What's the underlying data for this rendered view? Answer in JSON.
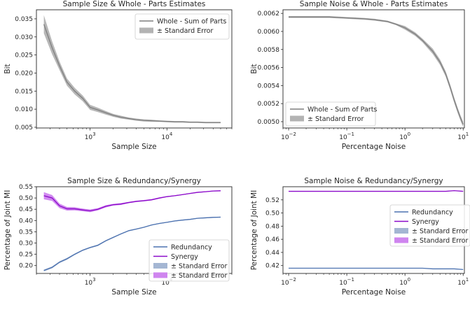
{
  "chart_data": [
    {
      "type": "line",
      "title": "Sample Size & Whole - Parts Estimates",
      "xlabel": "Sample Size",
      "ylabel": "Bit",
      "xscale": "log",
      "xlim": [
        200,
        70000
      ],
      "ylim": [
        0.0048,
        0.0375
      ],
      "xticks": [
        {
          "v": 1000,
          "base": "10",
          "exp": "3"
        },
        {
          "v": 10000,
          "base": "10",
          "exp": "4"
        }
      ],
      "yticks": [
        {
          "v": 0.005,
          "label": "0.005"
        },
        {
          "v": 0.01,
          "label": "0.010"
        },
        {
          "v": 0.015,
          "label": "0.015"
        },
        {
          "v": 0.02,
          "label": "0.020"
        },
        {
          "v": 0.025,
          "label": "0.025"
        },
        {
          "v": 0.03,
          "label": "0.030"
        },
        {
          "v": 0.035,
          "label": "0.035"
        }
      ],
      "legend_position": "top-right",
      "legend": [
        {
          "label": "Whole - Sum of Parts",
          "kind": "line",
          "color": "#7f7f7f"
        },
        {
          "label": "± Standard Error",
          "kind": "band",
          "color": "#b3b3b3"
        }
      ],
      "x": [
        250,
        320,
        400,
        500,
        630,
        800,
        1000,
        1260,
        1600,
        2000,
        2500,
        3200,
        4000,
        5000,
        6300,
        8000,
        10000,
        12600,
        16000,
        20000,
        25000,
        32000,
        40000,
        50000
      ],
      "series": [
        {
          "name": "Whole - Sum of Parts",
          "color": "#7f7f7f",
          "band_color": "#b3b3b3",
          "values": [
            0.0335,
            0.027,
            0.022,
            0.0175,
            0.015,
            0.013,
            0.0105,
            0.0098,
            0.009,
            0.0083,
            0.0078,
            0.0074,
            0.0071,
            0.0069,
            0.0068,
            0.0067,
            0.0066,
            0.0065,
            0.0065,
            0.0064,
            0.0064,
            0.0063,
            0.0063,
            0.0063
          ],
          "err": [
            0.0025,
            0.0018,
            0.0012,
            0.001,
            0.0009,
            0.0008,
            0.0007,
            0.0006,
            0.0005,
            0.0004,
            0.0004,
            0.0003,
            0.0003,
            0.0003,
            0.0003,
            0.0002,
            0.0002,
            0.0002,
            0.0002,
            0.0002,
            0.0002,
            0.0002,
            0.0002,
            0.0002
          ]
        }
      ]
    },
    {
      "type": "line",
      "title": "Sample Noise & Whole - Parts Estimates",
      "xlabel": "Percentage Noise",
      "ylabel": "Bit",
      "xscale": "log",
      "xlim": [
        0.008,
        10.5
      ],
      "ylim": [
        0.00493,
        0.00624
      ],
      "xticks": [
        {
          "v": 0.01,
          "base": "10",
          "exp": "−2"
        },
        {
          "v": 0.1,
          "base": "10",
          "exp": "−1"
        },
        {
          "v": 1,
          "base": "10",
          "exp": "0"
        },
        {
          "v": 10,
          "base": "10",
          "exp": "1"
        }
      ],
      "yticks": [
        {
          "v": 0.005,
          "label": "0.0050"
        },
        {
          "v": 0.0052,
          "label": "0.0052"
        },
        {
          "v": 0.0054,
          "label": "0.0054"
        },
        {
          "v": 0.0056,
          "label": "0.0056"
        },
        {
          "v": 0.0058,
          "label": "0.0058"
        },
        {
          "v": 0.006,
          "label": "0.0060"
        },
        {
          "v": 0.0062,
          "label": "0.0062"
        }
      ],
      "legend_position": "bottom-left",
      "legend": [
        {
          "label": "Whole - Sum of Parts",
          "kind": "line",
          "color": "#7f7f7f"
        },
        {
          "label": "± Standard Error",
          "kind": "band",
          "color": "#b3b3b3"
        }
      ],
      "x": [
        0.01,
        0.02,
        0.05,
        0.1,
        0.2,
        0.3,
        0.5,
        0.7,
        1,
        1.5,
        2,
        3,
        4,
        5,
        6,
        7,
        8,
        9,
        10
      ],
      "series": [
        {
          "name": "Whole - Sum of Parts",
          "color": "#7f7f7f",
          "band_color": "#b3b3b3",
          "values": [
            0.00616,
            0.00616,
            0.00616,
            0.00615,
            0.00614,
            0.00613,
            0.00611,
            0.00608,
            0.00604,
            0.00597,
            0.0059,
            0.00578,
            0.00566,
            0.00553,
            0.00538,
            0.00524,
            0.00513,
            0.00504,
            0.00497
          ],
          "err": [
            1e-05,
            1e-05,
            1e-05,
            1e-05,
            1e-05,
            1e-05,
            1e-05,
            1e-05,
            2e-05,
            2e-05,
            2e-05,
            3e-05,
            3e-05,
            3e-05,
            3e-05,
            3e-05,
            3e-05,
            3e-05,
            3e-05
          ]
        }
      ]
    },
    {
      "type": "line",
      "title": "Sample Size & Redundancy/Synergy",
      "xlabel": "Sample Size",
      "ylabel": "Percentage of Joint MI",
      "xscale": "log",
      "xlim": [
        200,
        70000
      ],
      "ylim": [
        0.165,
        0.55
      ],
      "xticks": [
        {
          "v": 1000,
          "base": "10",
          "exp": "3"
        },
        {
          "v": 10000,
          "base": "10",
          "exp": "4"
        }
      ],
      "yticks": [
        {
          "v": 0.2,
          "label": "0.20"
        },
        {
          "v": 0.25,
          "label": "0.25"
        },
        {
          "v": 0.3,
          "label": "0.30"
        },
        {
          "v": 0.35,
          "label": "0.35"
        },
        {
          "v": 0.4,
          "label": "0.40"
        },
        {
          "v": 0.45,
          "label": "0.45"
        },
        {
          "v": 0.5,
          "label": "0.50"
        },
        {
          "v": 0.55,
          "label": "0.55"
        }
      ],
      "legend_position": "bottom-right",
      "legend": [
        {
          "label": "Redundancy",
          "kind": "line",
          "color": "#4c72b0"
        },
        {
          "label": "Synergy",
          "kind": "line",
          "color": "#8b0ac9"
        },
        {
          "label": "± Standard Error",
          "kind": "band",
          "color": "#a4b6d3"
        },
        {
          "label": "± Standard Error",
          "kind": "band",
          "color": "#cf85ef"
        }
      ],
      "x": [
        250,
        320,
        400,
        500,
        630,
        800,
        1000,
        1260,
        1600,
        2000,
        2500,
        3200,
        4000,
        5000,
        6300,
        8000,
        10000,
        12600,
        16000,
        20000,
        25000,
        32000,
        40000,
        50000
      ],
      "series": [
        {
          "name": "Redundancy",
          "color": "#4c72b0",
          "band_color": "#a4b6d3",
          "values": [
            0.178,
            0.192,
            0.215,
            0.23,
            0.25,
            0.268,
            0.28,
            0.29,
            0.31,
            0.325,
            0.34,
            0.355,
            0.362,
            0.37,
            0.38,
            0.387,
            0.392,
            0.398,
            0.402,
            0.405,
            0.41,
            0.412,
            0.414,
            0.415
          ],
          "err": [
            0.004,
            0.004,
            0.004,
            0.004,
            0.003,
            0.003,
            0.003,
            0.003,
            0.003,
            0.003,
            0.002,
            0.002,
            0.002,
            0.002,
            0.002,
            0.002,
            0.002,
            0.002,
            0.002,
            0.002,
            0.002,
            0.002,
            0.002,
            0.002
          ]
        },
        {
          "name": "Synergy",
          "color": "#8b0ac9",
          "band_color": "#cf85ef",
          "values": [
            0.51,
            0.5,
            0.465,
            0.452,
            0.452,
            0.447,
            0.443,
            0.45,
            0.463,
            0.47,
            0.473,
            0.48,
            0.485,
            0.488,
            0.492,
            0.5,
            0.506,
            0.51,
            0.515,
            0.52,
            0.525,
            0.528,
            0.531,
            0.532
          ],
          "err": [
            0.016,
            0.013,
            0.01,
            0.008,
            0.007,
            0.006,
            0.006,
            0.005,
            0.005,
            0.004,
            0.004,
            0.003,
            0.003,
            0.003,
            0.003,
            0.003,
            0.002,
            0.002,
            0.002,
            0.002,
            0.002,
            0.002,
            0.002,
            0.002
          ]
        }
      ]
    },
    {
      "type": "line",
      "title": "Sample Noise & Redundancy/Synergy",
      "xlabel": "Percentage Noise",
      "ylabel": "Percentage of Joint MI",
      "xscale": "log",
      "xlim": [
        0.008,
        10.5
      ],
      "ylim": [
        0.408,
        0.54
      ],
      "xticks": [
        {
          "v": 0.01,
          "base": "10",
          "exp": "−2"
        },
        {
          "v": 0.1,
          "base": "10",
          "exp": "−1"
        },
        {
          "v": 1,
          "base": "10",
          "exp": "0"
        },
        {
          "v": 10,
          "base": "10",
          "exp": "1"
        }
      ],
      "yticks": [
        {
          "v": 0.42,
          "label": "0.42"
        },
        {
          "v": 0.44,
          "label": "0.44"
        },
        {
          "v": 0.46,
          "label": "0.46"
        },
        {
          "v": 0.48,
          "label": "0.48"
        },
        {
          "v": 0.5,
          "label": "0.50"
        },
        {
          "v": 0.52,
          "label": "0.52"
        }
      ],
      "legend_position": "center-right",
      "legend": [
        {
          "label": "Redundancy",
          "kind": "line",
          "color": "#4c72b0"
        },
        {
          "label": "Synergy",
          "kind": "line",
          "color": "#8b0ac9"
        },
        {
          "label": "± Standard Error",
          "kind": "band",
          "color": "#a4b6d3"
        },
        {
          "label": "± Standard Error",
          "kind": "band",
          "color": "#cf85ef"
        }
      ],
      "x": [
        0.01,
        0.02,
        0.05,
        0.1,
        0.2,
        0.5,
        1,
        2,
        3,
        5,
        7,
        10
      ],
      "series": [
        {
          "name": "Redundancy",
          "color": "#4c72b0",
          "band_color": "#a4b6d3",
          "values": [
            0.416,
            0.416,
            0.416,
            0.416,
            0.416,
            0.416,
            0.416,
            0.416,
            0.415,
            0.415,
            0.415,
            0.414
          ],
          "err": [
            0.0003,
            0.0003,
            0.0003,
            0.0003,
            0.0003,
            0.0003,
            0.0003,
            0.0003,
            0.0003,
            0.0003,
            0.0003,
            0.0003
          ]
        },
        {
          "name": "Synergy",
          "color": "#8b0ac9",
          "band_color": "#cf85ef",
          "values": [
            0.533,
            0.533,
            0.533,
            0.533,
            0.533,
            0.533,
            0.533,
            0.533,
            0.533,
            0.533,
            0.534,
            0.533
          ],
          "err": [
            0.0003,
            0.0003,
            0.0003,
            0.0003,
            0.0003,
            0.0003,
            0.0003,
            0.0003,
            0.0003,
            0.0003,
            0.0003,
            0.0003
          ]
        }
      ]
    }
  ]
}
